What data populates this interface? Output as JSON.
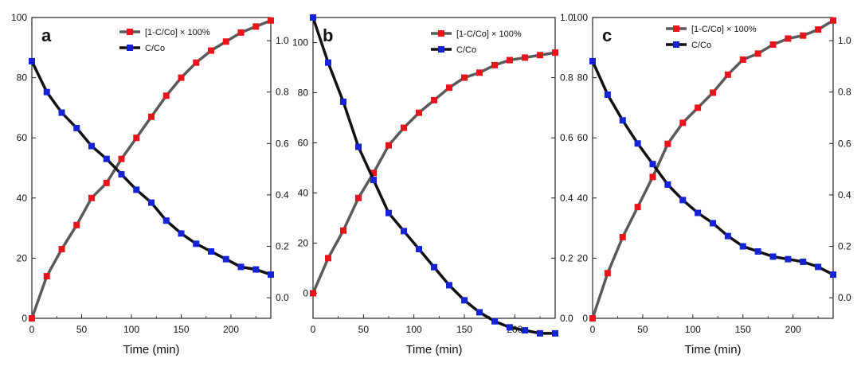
{
  "chart_data": [
    {
      "type": "line",
      "panel_label": "a",
      "xlabel": "Time (min)",
      "xlim": [
        0,
        240
      ],
      "x_ticks": [
        "0",
        "50",
        "100",
        "150",
        "200"
      ],
      "y_left_lim": [
        0,
        100
      ],
      "y_left_ticks": [
        "0",
        "20",
        "40",
        "60",
        "80",
        "100"
      ],
      "y_right_lim": [
        -0.08,
        1.09
      ],
      "y_right_ticks": [
        "0.0",
        "0.2",
        "0.4",
        "0.6",
        "0.8",
        "1.0"
      ],
      "legend_position": "top-center",
      "x": [
        0,
        15,
        30,
        45,
        60,
        75,
        90,
        105,
        120,
        135,
        150,
        165,
        180,
        195,
        210,
        225,
        240
      ],
      "series": [
        {
          "name": "[1-C/Co] × 100%",
          "axis": "left",
          "color": "#e8141c",
          "values": [
            0,
            14,
            23,
            31,
            40,
            45,
            53,
            60,
            67,
            74,
            80,
            85,
            89,
            92,
            95,
            97,
            99
          ]
        },
        {
          "name": "C/Co",
          "axis": "right",
          "color": "#1523d4",
          "values": [
            0.92,
            0.8,
            0.72,
            0.66,
            0.59,
            0.54,
            0.48,
            0.42,
            0.37,
            0.3,
            0.25,
            0.21,
            0.18,
            0.15,
            0.12,
            0.11,
            0.09
          ]
        }
      ]
    },
    {
      "type": "line",
      "panel_label": "b",
      "xlabel": "Time (min)",
      "xlim": [
        0,
        240
      ],
      "x_ticks": [
        "0",
        "50",
        "100",
        "150",
        "200"
      ],
      "y_left_lim": [
        -10,
        110
      ],
      "y_left_ticks": [
        "0",
        "20",
        "40",
        "60",
        "80",
        "100"
      ],
      "y_right_lim": [
        0.0,
        1.0
      ],
      "y_right_ticks": [
        "0.0",
        "0.2",
        "0.4",
        "0.6",
        "0.8",
        "1.0"
      ],
      "legend_position": "top-right",
      "x": [
        0,
        15,
        30,
        45,
        60,
        75,
        90,
        105,
        120,
        135,
        150,
        165,
        180,
        195,
        210,
        225,
        240
      ],
      "series": [
        {
          "name": "[1-C/Co] × 100%",
          "axis": "left",
          "color": "#e8141c",
          "values": [
            0,
            14,
            25,
            38,
            48,
            59,
            66,
            72,
            77,
            82,
            86,
            88,
            91,
            93,
            94,
            95,
            96
          ]
        },
        {
          "name": "C/Co",
          "axis": "right",
          "color": "#1523d4",
          "values": [
            1.0,
            0.85,
            0.72,
            0.57,
            0.46,
            0.35,
            0.29,
            0.23,
            0.17,
            0.11,
            0.06,
            0.02,
            -0.01,
            -0.03,
            -0.04,
            -0.05,
            -0.05
          ]
        }
      ]
    },
    {
      "type": "line",
      "panel_label": "c",
      "xlabel": "Time (min)",
      "xlim": [
        0,
        240
      ],
      "x_ticks": [
        "0",
        "50",
        "100",
        "150",
        "200"
      ],
      "y_left_lim": [
        0,
        100
      ],
      "y_left_ticks": [
        "0",
        "20",
        "40",
        "60",
        "80",
        "100"
      ],
      "y_right_lim": [
        -0.08,
        1.09
      ],
      "y_right_ticks": [
        "0.0",
        "0.2",
        "0.4",
        "0.6",
        "0.8",
        "1.0"
      ],
      "legend_position": "top-center",
      "x": [
        0,
        15,
        30,
        45,
        60,
        75,
        90,
        105,
        120,
        135,
        150,
        165,
        180,
        195,
        210,
        225,
        240
      ],
      "series": [
        {
          "name": "[1-C/Co] × 100%",
          "axis": "left",
          "color": "#e8141c",
          "values": [
            0,
            15,
            27,
            37,
            47,
            58,
            65,
            70,
            75,
            81,
            86,
            88,
            91,
            93,
            94,
            96,
            99
          ]
        },
        {
          "name": "C/Co",
          "axis": "right",
          "color": "#1523d4",
          "values": [
            0.92,
            0.79,
            0.69,
            0.6,
            0.52,
            0.44,
            0.38,
            0.33,
            0.29,
            0.24,
            0.2,
            0.18,
            0.16,
            0.15,
            0.14,
            0.12,
            0.09
          ]
        }
      ]
    }
  ]
}
